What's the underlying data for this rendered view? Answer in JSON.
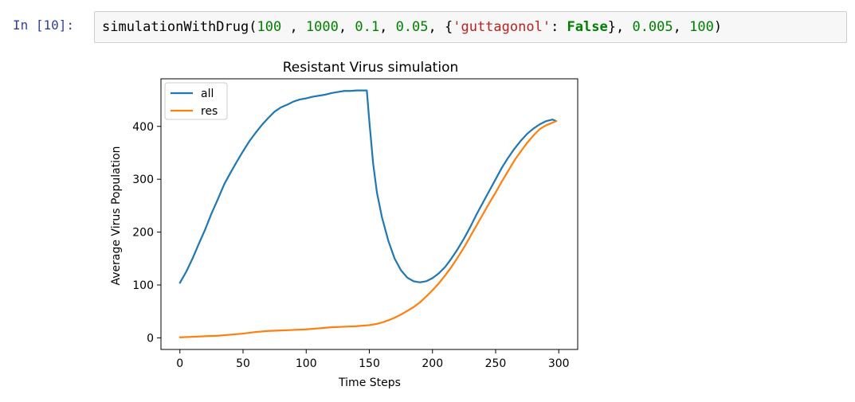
{
  "cell": {
    "prompt": "In [10]:",
    "code_tokens": [
      {
        "t": "simulationWithDrug",
        "c": "fn"
      },
      {
        "t": "(",
        "c": "p"
      },
      {
        "t": "100",
        "c": "num"
      },
      {
        "t": " , ",
        "c": "p"
      },
      {
        "t": "1000",
        "c": "num"
      },
      {
        "t": ", ",
        "c": "p"
      },
      {
        "t": "0.1",
        "c": "num"
      },
      {
        "t": ", ",
        "c": "p"
      },
      {
        "t": "0.05",
        "c": "num"
      },
      {
        "t": ", {",
        "c": "p"
      },
      {
        "t": "'guttagonol'",
        "c": "str"
      },
      {
        "t": ": ",
        "c": "p"
      },
      {
        "t": "False",
        "c": "kw"
      },
      {
        "t": "}, ",
        "c": "p"
      },
      {
        "t": "0.005",
        "c": "num"
      },
      {
        "t": ", ",
        "c": "p"
      },
      {
        "t": "100",
        "c": "num"
      },
      {
        "t": ")",
        "c": "p"
      }
    ]
  },
  "chart_data": {
    "type": "line",
    "title": "Resistant Virus simulation",
    "xlabel": "Time Steps",
    "ylabel": "Average Virus Population",
    "xlim": [
      -15,
      315
    ],
    "ylim": [
      -22,
      490
    ],
    "xticks": [
      0,
      50,
      100,
      150,
      200,
      250,
      300
    ],
    "yticks": [
      0,
      100,
      200,
      300,
      400
    ],
    "grid": false,
    "legend": "top-left",
    "series": [
      {
        "name": "all",
        "color": "#1f77b4",
        "x": [
          0,
          5,
          10,
          15,
          20,
          25,
          30,
          35,
          40,
          45,
          50,
          55,
          60,
          65,
          70,
          75,
          80,
          85,
          90,
          95,
          100,
          105,
          110,
          115,
          120,
          125,
          130,
          135,
          140,
          145,
          148,
          150,
          153,
          156,
          160,
          165,
          170,
          175,
          180,
          185,
          190,
          195,
          200,
          205,
          210,
          215,
          220,
          225,
          230,
          235,
          240,
          245,
          250,
          255,
          260,
          265,
          270,
          275,
          280,
          285,
          290,
          295,
          298
        ],
        "y": [
          104,
          125,
          150,
          178,
          205,
          235,
          262,
          290,
          312,
          333,
          353,
          372,
          388,
          403,
          416,
          428,
          436,
          441,
          447,
          451,
          453,
          456,
          458,
          460,
          463,
          465,
          467,
          467,
          468,
          468,
          468,
          410,
          330,
          275,
          228,
          184,
          150,
          128,
          114,
          107,
          105,
          107,
          113,
          122,
          134,
          150,
          168,
          188,
          210,
          234,
          256,
          278,
          300,
          322,
          341,
          358,
          373,
          386,
          396,
          404,
          410,
          413,
          410
        ]
      },
      {
        "name": "res",
        "color": "#ff7f0e",
        "x": [
          0,
          10,
          20,
          30,
          40,
          50,
          60,
          70,
          80,
          90,
          100,
          110,
          120,
          130,
          140,
          150,
          155,
          160,
          165,
          170,
          175,
          180,
          185,
          190,
          195,
          200,
          205,
          210,
          215,
          220,
          225,
          230,
          235,
          240,
          245,
          250,
          255,
          260,
          265,
          270,
          275,
          280,
          285,
          290,
          295,
          298
        ],
        "y": [
          1,
          2,
          3,
          4,
          6,
          8,
          11,
          13,
          14,
          15,
          16,
          18,
          20,
          21,
          22,
          24,
          26,
          29,
          33,
          38,
          44,
          51,
          58,
          67,
          78,
          90,
          103,
          118,
          134,
          152,
          171,
          192,
          213,
          234,
          255,
          275,
          296,
          316,
          336,
          353,
          369,
          383,
          395,
          402,
          407,
          410
        ]
      }
    ]
  }
}
